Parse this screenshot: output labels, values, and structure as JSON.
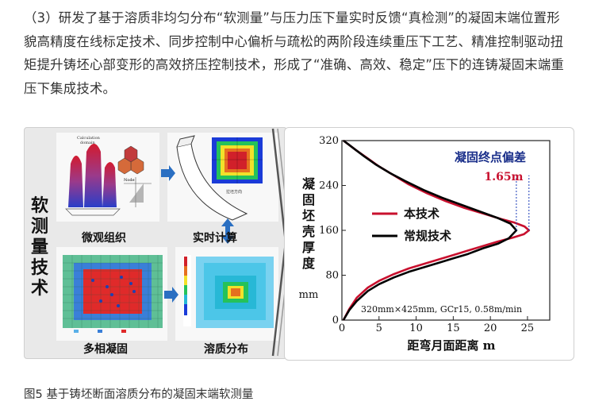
{
  "paragraph": "（3）研发了基于溶质非均匀分布“软测量”与压力压下量实时反馈“真检测”的凝固末端位置形貌高精度在线标定技术、同步控制中心偏析与疏松的两阶段连续重压下工艺、精准控制驱动扭矩提升铸坯心部变形的高效挤压控制技术，形成了“准确、高效、稳定”压下的连铸凝固末端重压下集成技术。",
  "figure": {
    "left_title": "软测量技术",
    "panels": {
      "micro": "微观组织",
      "realtime": "实时计算",
      "multiphase": "多相凝固",
      "solute": "溶质分布"
    },
    "chart_data": {
      "type": "line",
      "title": "凝固终点偏差",
      "annotation_value": "1.65m",
      "xlabel": "距弯月面距离  m",
      "ylabel": "凝固坯壳厚度",
      "yunit": "mm",
      "note": "320mm×425mm, GCr15, 0.58m/min",
      "xlim": [
        0,
        28
      ],
      "ylim": [
        0,
        320
      ],
      "xticks": [
        0,
        5,
        10,
        15,
        20,
        25
      ],
      "yticks": [
        0,
        80,
        160,
        240,
        320
      ],
      "series": [
        {
          "name": "本技术",
          "color": "#c8102e",
          "points": [
            [
              0.2,
              0
            ],
            [
              1,
              20
            ],
            [
              2,
              40
            ],
            [
              3.5,
              58
            ],
            [
              5,
              70
            ],
            [
              7,
              82
            ],
            [
              9,
              92
            ],
            [
              11,
              100
            ],
            [
              13,
              108
            ],
            [
              15,
              116
            ],
            [
              17,
              124
            ],
            [
              19,
              132
            ],
            [
              21,
              140
            ],
            [
              23,
              147
            ],
            [
              24.5,
              153
            ],
            [
              25.2,
              160
            ],
            [
              24.6,
              167
            ],
            [
              23.2,
              174
            ],
            [
              21.5,
              180
            ],
            [
              19,
              190
            ],
            [
              16.5,
              200
            ],
            [
              14,
              212
            ],
            [
              11.5,
              226
            ],
            [
              9,
              242
            ],
            [
              7,
              258
            ],
            [
              5,
              274
            ],
            [
              3.5,
              288
            ],
            [
              2,
              302
            ],
            [
              1,
              312
            ],
            [
              0.2,
              320
            ]
          ]
        },
        {
          "name": "常规技术",
          "color": "#000000",
          "points": [
            [
              0.2,
              0
            ],
            [
              1,
              18
            ],
            [
              2,
              34
            ],
            [
              3.5,
              52
            ],
            [
              5,
              64
            ],
            [
              7,
              76
            ],
            [
              9,
              86
            ],
            [
              11,
              94
            ],
            [
              13,
              102
            ],
            [
              15,
              110
            ],
            [
              17,
              118
            ],
            [
              19,
              128
            ],
            [
              21,
              136
            ],
            [
              22.5,
              146
            ],
            [
              23.5,
              160
            ],
            [
              22.7,
              172
            ],
            [
              21,
              182
            ],
            [
              18.5,
              194
            ],
            [
              16,
              206
            ],
            [
              13.5,
              218
            ],
            [
              11,
              232
            ],
            [
              8.5,
              248
            ],
            [
              6.5,
              262
            ],
            [
              4.5,
              278
            ],
            [
              3,
              292
            ],
            [
              1.8,
              304
            ],
            [
              0.8,
              314
            ],
            [
              0.2,
              320
            ]
          ]
        }
      ]
    }
  },
  "caption": "图5 基于铸坯断面溶质分布的凝固末端软测量"
}
